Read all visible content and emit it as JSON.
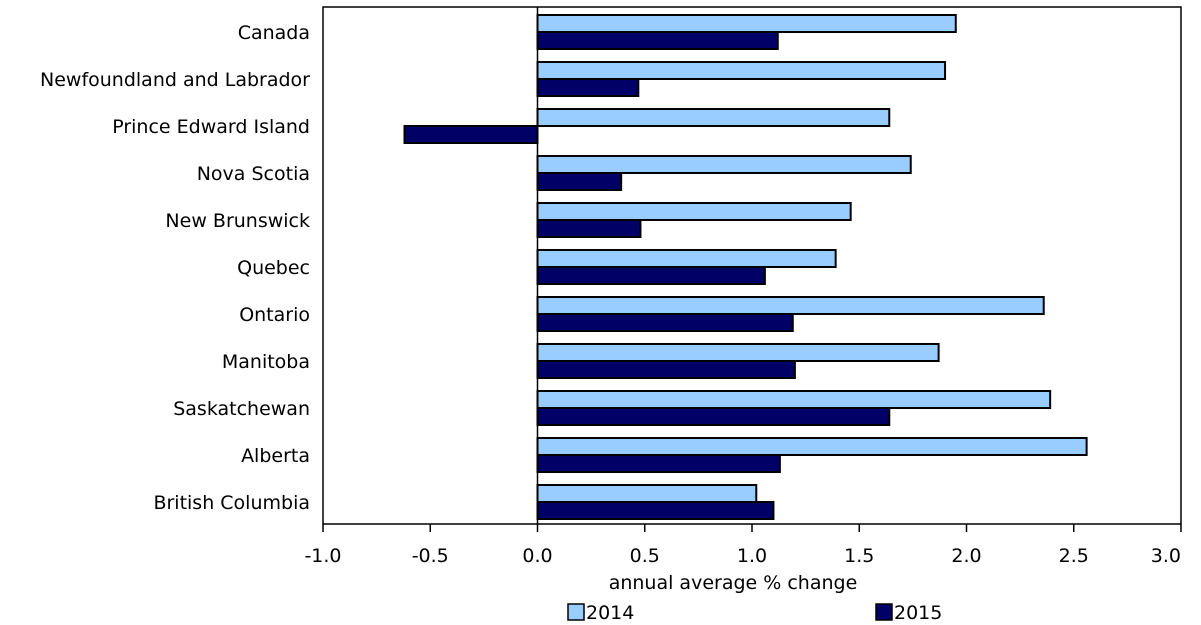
{
  "chart_data": {
    "type": "bar",
    "orientation": "horizontal",
    "categories": [
      "Canada",
      "Newfoundland and Labrador",
      "Prince Edward Island",
      "Nova Scotia",
      "New Brunswick",
      "Quebec",
      "Ontario",
      "Manitoba",
      "Saskatchewan",
      "Alberta",
      "British Columbia"
    ],
    "series": [
      {
        "name": "2014",
        "color": "#99ccff",
        "values": [
          1.95,
          1.9,
          1.64,
          1.74,
          1.46,
          1.39,
          2.36,
          1.87,
          2.39,
          2.56,
          1.02
        ]
      },
      {
        "name": "2015",
        "color": "#000066",
        "values": [
          1.12,
          0.47,
          -0.62,
          0.39,
          0.48,
          1.06,
          1.19,
          1.2,
          1.64,
          1.13,
          1.1
        ]
      }
    ],
    "xlabel": "annual average % change",
    "ylabel": "",
    "xlim": [
      -1.0,
      3.0
    ],
    "xticks": [
      "-1.0",
      "-0.5",
      "0.0",
      "0.5",
      "1.0",
      "1.5",
      "2.0",
      "2.5",
      "3.0"
    ],
    "grid": false,
    "legend_position": "bottom"
  }
}
